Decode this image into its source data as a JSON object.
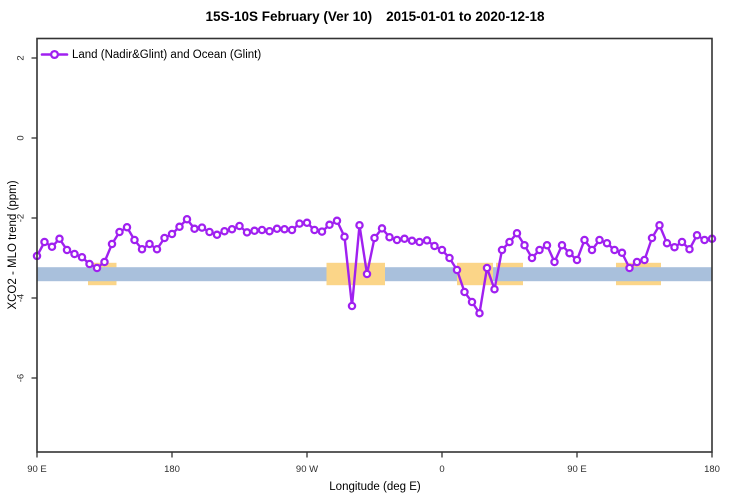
{
  "title": {
    "main": "15S-10S February (Ver 10)",
    "dates": "2015-01-01 to 2020-12-18"
  },
  "legend": {
    "label": "Land (Nadir&Glint) and Ocean (Glint)"
  },
  "axes": {
    "x_label": "Longitude (deg E)",
    "y_label": "XCO2 - MLO trend (ppm)"
  },
  "colors": {
    "series": "#A020F0",
    "blue_band": "#A9C0DC",
    "orange_band": "#FBD588",
    "frame": "#333333",
    "tick_text": "#2e2e2e"
  },
  "chart_data": {
    "type": "line",
    "title": "15S-10S February (Ver 10)  2015-01-01 to 2020-12-18",
    "xlabel": "Longitude (deg E)",
    "ylabel": "XCO2 - MLO trend (ppm)",
    "xlim": [
      90,
      540
    ],
    "ylim": [
      -7.85,
      2.5
    ],
    "grid": false,
    "legend_position": "top-left",
    "x_ticks": [
      {
        "label": "90 E",
        "deg": 90
      },
      {
        "label": "180",
        "deg": 180
      },
      {
        "label": "90 W",
        "deg": 270
      },
      {
        "label": "0",
        "deg": 360
      },
      {
        "label": "90 E",
        "deg": 450
      },
      {
        "label": "180",
        "deg": 540
      }
    ],
    "y_ticks": [
      2,
      0,
      -2,
      -4,
      -6
    ],
    "bands": [
      {
        "name": "orange-highlight-band",
        "color": "#FBD588",
        "value_from": -3.68,
        "value_to": -3.12,
        "segments_deg": [
          [
            124,
            143
          ],
          [
            283,
            322
          ],
          [
            370,
            394
          ],
          [
            396,
            414
          ],
          [
            476,
            506
          ]
        ]
      },
      {
        "name": "blue-reference-band",
        "color": "#A9C0DC",
        "value_from": -3.58,
        "value_to": -3.23,
        "segments_deg": [
          [
            90,
            283
          ],
          [
            322,
            370
          ],
          [
            394,
            540
          ]
        ]
      }
    ],
    "series": [
      {
        "name": "Land (Nadir&Glint) and Ocean (Glint)",
        "color": "#A020F0",
        "marker": "open-circle",
        "x_start_deg": 90,
        "x_step_deg": 5,
        "values": [
          -2.95,
          -2.6,
          -2.72,
          -2.52,
          -2.8,
          -2.9,
          -2.98,
          -3.15,
          -3.25,
          -3.1,
          -2.65,
          -2.35,
          -2.23,
          -2.55,
          -2.78,
          -2.65,
          -2.78,
          -2.5,
          -2.4,
          -2.22,
          -2.03,
          -2.27,
          -2.24,
          -2.35,
          -2.42,
          -2.33,
          -2.28,
          -2.2,
          -2.36,
          -2.32,
          -2.3,
          -2.33,
          -2.27,
          -2.28,
          -2.3,
          -2.14,
          -2.12,
          -2.3,
          -2.34,
          -2.17,
          -2.07,
          -2.47,
          -4.2,
          -2.18,
          -3.4,
          -2.5,
          -2.26,
          -2.48,
          -2.55,
          -2.52,
          -2.57,
          -2.6,
          -2.56,
          -2.7,
          -2.8,
          -3.0,
          -3.3,
          -3.85,
          -4.1,
          -4.38,
          -3.25,
          -3.78,
          -2.8,
          -2.6,
          -2.38,
          -2.68,
          -3.0,
          -2.8,
          -2.68,
          -3.1,
          -2.68,
          -2.88,
          -3.05,
          -2.55,
          -2.8,
          -2.55,
          -2.63,
          -2.8,
          -2.87,
          -3.25,
          -3.1,
          -3.05,
          -2.5,
          -2.18,
          -2.63,
          -2.73,
          -2.6,
          -2.78,
          -2.43,
          -2.55,
          -2.52
        ]
      }
    ]
  }
}
